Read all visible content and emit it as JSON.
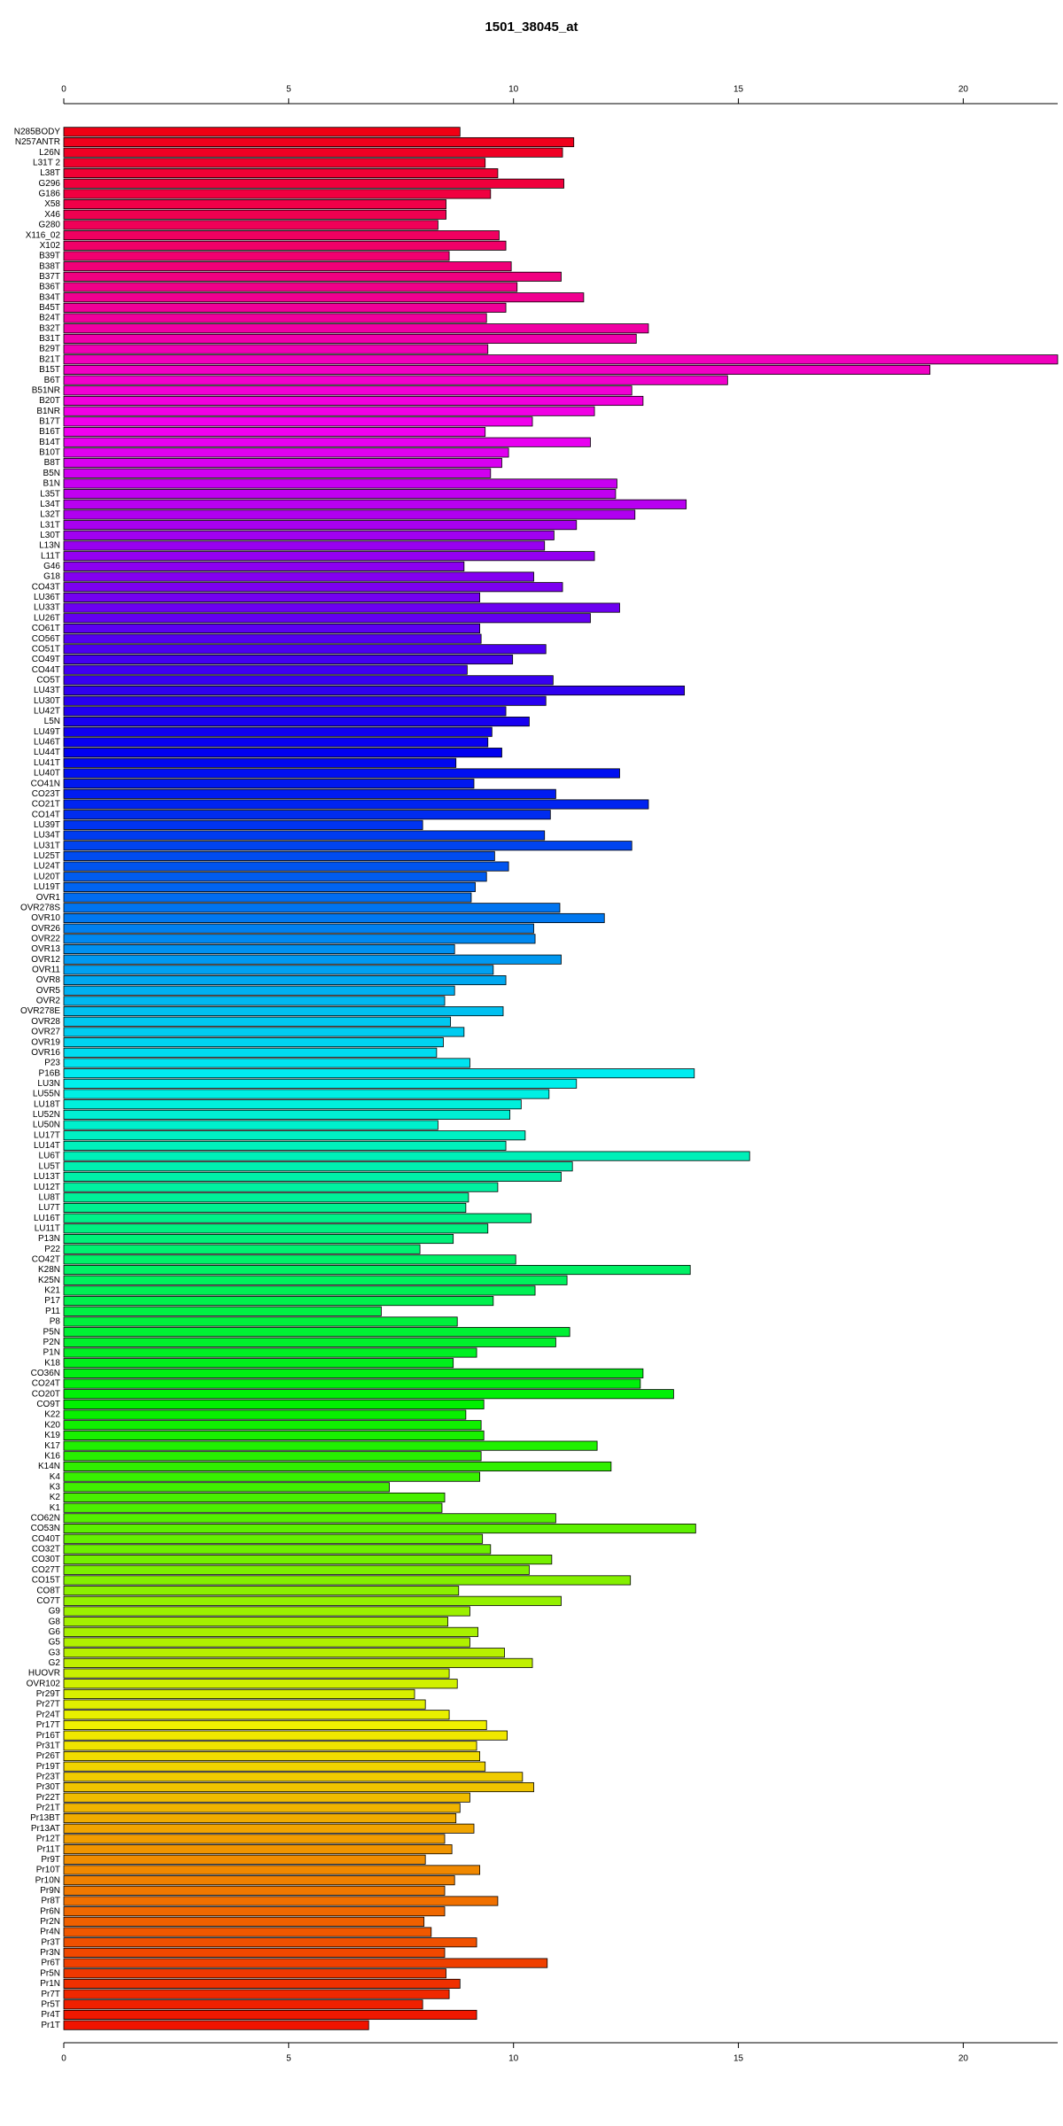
{
  "chart_data": {
    "type": "bar",
    "orientation": "horizontal",
    "title": "1501_38045_at",
    "categories": [
      "N285BODY",
      "N257ANTR",
      "L26N",
      "L31T 2",
      "L38T",
      "G296",
      "G186",
      "X58",
      "X46",
      "G280",
      "X116_02",
      "X102",
      "B39T",
      "B38T",
      "B37T",
      "B36T",
      "B34T",
      "B45T",
      "B24T",
      "B32T",
      "B31T",
      "B29T",
      "B21T",
      "B15T",
      "B6T",
      "B51NR",
      "B20T",
      "B1NR",
      "B17T",
      "B16T",
      "B14T",
      "B10T",
      "B8T",
      "B5N",
      "B1N",
      "L35T",
      "L34T",
      "L32T",
      "L31T",
      "L30T",
      "L13N",
      "L11T",
      "G46",
      "G18",
      "CO43T",
      "LU36T",
      "LU33T",
      "LU26T",
      "CO61T",
      "CO56T",
      "CO51T",
      "CO49T",
      "CO44T",
      "CO5T",
      "LU43T",
      "LU30T",
      "LU42T",
      "L5N",
      "LU49T",
      "LU46T",
      "LU44T",
      "LU41T",
      "LU40T",
      "CO41N",
      "CO23T",
      "CO21T",
      "CO14T",
      "LU39T",
      "LU34T",
      "LU31T",
      "LU25T",
      "LU24T",
      "LU20T",
      "LU19T",
      "OVR1",
      "OVR278S",
      "OVR10",
      "OVR26",
      "OVR22",
      "OVR13",
      "OVR12",
      "OVR11",
      "OVR8",
      "OVR5",
      "OVR2",
      "OVR278E",
      "OVR28",
      "OVR27",
      "OVR19",
      "OVR16",
      "P23",
      "P16B",
      "LU3N",
      "LU55N",
      "LU18T",
      "LU52N",
      "LU50N",
      "LU17T",
      "LU14T",
      "LU6T",
      "LU5T",
      "LU13T",
      "LU12T",
      "LU8T",
      "LU7T",
      "LU16T",
      "LU11T",
      "P13N",
      "P22",
      "CO42T",
      "K28N",
      "K25N",
      "K21",
      "P17",
      "P11",
      "P8",
      "P5N",
      "P2N",
      "P1N",
      "K18",
      "CO36N",
      "CO24T",
      "CO20T",
      "CO9T",
      "K22",
      "K20",
      "K19",
      "K17",
      "K16",
      "K14N",
      "K4",
      "K3",
      "K2",
      "K1",
      "CO62N",
      "CO53N",
      "CO40T",
      "CO32T",
      "CO30T",
      "CO27T",
      "CO15T",
      "CO8T",
      "CO7T",
      "G9",
      "G8",
      "G6",
      "G5",
      "G3",
      "G2",
      "HUOVR",
      "OVR102",
      "Pr29T",
      "Pr27T",
      "Pr24T",
      "Pr17T",
      "Pr16T",
      "Pr31T",
      "Pr26T",
      "Pr19T",
      "Pr23T",
      "Pr30T",
      "Pr22T",
      "Pr21T",
      "Pr13BT",
      "Pr13AT",
      "Pr12T",
      "Pr11T",
      "Pr9T",
      "Pr10T",
      "Pr10N",
      "Pr9N",
      "Pr8T",
      "Pr6N",
      "Pr2N",
      "Pr4N",
      "Pr3T",
      "Pr3N",
      "Pr6T",
      "Pr5N",
      "Pr1N",
      "Pr7T",
      "Pr5T",
      "Pr4T",
      "Pr1T"
    ],
    "values": [
      8.81,
      11.34,
      11.09,
      9.37,
      9.65,
      11.12,
      9.49,
      8.5,
      8.5,
      8.32,
      9.68,
      9.83,
      8.57,
      9.95,
      11.06,
      10.08,
      11.56,
      9.83,
      9.4,
      13.0,
      12.73,
      9.43,
      22.1,
      19.26,
      14.76,
      12.63,
      12.88,
      11.8,
      10.42,
      9.37,
      11.71,
      9.89,
      9.74,
      9.49,
      12.3,
      12.27,
      13.84,
      12.7,
      11.4,
      10.9,
      10.69,
      11.8,
      8.9,
      10.45,
      11.09,
      9.25,
      12.36,
      11.71,
      9.25,
      9.28,
      10.72,
      9.98,
      8.97,
      10.88,
      13.8,
      10.72,
      9.83,
      10.35,
      9.52,
      9.43,
      9.74,
      8.72,
      12.36,
      9.12,
      10.94,
      13.0,
      10.82,
      7.98,
      10.69,
      12.63,
      9.58,
      9.89,
      9.4,
      9.15,
      9.06,
      11.03,
      12.02,
      10.45,
      10.48,
      8.69,
      11.06,
      9.55,
      9.83,
      8.69,
      8.47,
      9.77,
      8.6,
      8.9,
      8.44,
      8.29,
      9.03,
      14.02,
      11.4,
      10.79,
      10.17,
      9.92,
      8.32,
      10.26,
      9.83,
      15.25,
      11.31,
      11.06,
      9.65,
      9.0,
      8.94,
      10.39,
      9.43,
      8.66,
      7.92,
      10.05,
      13.93,
      11.19,
      10.48,
      9.55,
      7.06,
      8.75,
      11.25,
      10.94,
      9.18,
      8.66,
      12.88,
      12.82,
      13.56,
      9.34,
      8.94,
      9.28,
      9.34,
      11.86,
      9.28,
      12.17,
      9.25,
      7.24,
      8.47,
      8.41,
      10.94,
      14.05,
      9.31,
      9.49,
      10.85,
      10.35,
      12.6,
      8.78,
      11.06,
      9.03,
      8.54,
      9.21,
      9.03,
      9.8,
      10.42,
      8.57,
      8.75,
      7.8,
      8.04,
      8.57,
      9.4,
      9.86,
      9.18,
      9.25,
      9.37,
      10.2,
      10.45,
      9.03,
      8.81,
      8.72,
      9.12,
      8.47,
      8.63,
      8.04,
      9.25,
      8.69,
      8.47,
      9.65,
      8.47,
      8.01,
      8.17,
      9.18,
      8.47,
      10.75,
      8.5,
      8.81,
      8.57,
      7.98,
      9.18,
      6.78
    ],
    "colors": [
      "hsl(355,100%,47%)",
      "hsl(353,100%,47%)",
      "hsl(351,100%,47%)",
      "hsl(349,100%,47%)",
      "hsl(347,100%,47%)",
      "hsl(345,100%,47%)",
      "hsl(344,100%,47%)",
      "hsl(342,100%,47%)",
      "hsl(340,100%,47%)",
      "hsl(338,100%,47%)",
      "hsl(336,100%,47%)",
      "hsl(334,100%,47%)",
      "hsl(332,100%,47%)",
      "hsl(330,100%,47%)",
      "hsl(328,100%,47%)",
      "hsl(326,100%,47%)",
      "hsl(324,100%,47%)",
      "hsl(322,100%,47%)",
      "hsl(321,100%,47%)",
      "hsl(319,100%,47%)",
      "hsl(317,100%,47%)",
      "hsl(315,100%,47%)",
      "hsl(313,100%,47%)",
      "hsl(311,100%,47%)",
      "hsl(309,100%,47%)",
      "hsl(307,100%,47%)",
      "hsl(305,100%,47%)",
      "hsl(303,100%,47%)",
      "hsl(301,100%,47%)",
      "hsl(300,100%,47%)",
      "hsl(298,100%,47%)",
      "hsl(296,100%,47%)",
      "hsl(294,100%,47%)",
      "hsl(292,100%,47%)",
      "hsl(290,100%,47%)",
      "hsl(288,100%,47%)",
      "hsl(286,100%,47%)",
      "hsl(284,100%,47%)",
      "hsl(282,100%,47%)",
      "hsl(280,100%,47%)",
      "hsl(278,100%,47%)",
      "hsl(277,100%,47%)",
      "hsl(275,100%,47%)",
      "hsl(273,100%,47%)",
      "hsl(271,100%,47%)",
      "hsl(269,100%,47%)",
      "hsl(267,100%,47%)",
      "hsl(265,100%,47%)",
      "hsl(263,100%,47%)",
      "hsl(261,100%,47%)",
      "hsl(259,100%,47%)",
      "hsl(257,100%,47%)",
      "hsl(256,100%,47%)",
      "hsl(254,100%,47%)",
      "hsl(252,100%,47%)",
      "hsl(250,100%,47%)",
      "hsl(248,100%,47%)",
      "hsl(246,100%,47%)",
      "hsl(244,100%,47%)",
      "hsl(242,100%,47%)",
      "hsl(240,100%,47%)",
      "hsl(238,100%,47%)",
      "hsl(236,100%,47%)",
      "hsl(234,100%,47%)",
      "hsl(233,100%,47%)",
      "hsl(231,100%,47%)",
      "hsl(229,100%,47%)",
      "hsl(227,100%,47%)",
      "hsl(225,100%,47%)",
      "hsl(223,100%,47%)",
      "hsl(221,100%,47%)",
      "hsl(219,100%,47%)",
      "hsl(217,100%,47%)",
      "hsl(215,100%,47%)",
      "hsl(213,100%,47%)",
      "hsl(211,100%,47%)",
      "hsl(210,100%,47%)",
      "hsl(208,100%,47%)",
      "hsl(206,100%,47%)",
      "hsl(204,100%,47%)",
      "hsl(202,100%,47%)",
      "hsl(200,100%,47%)",
      "hsl(198,100%,47%)",
      "hsl(196,100%,47%)",
      "hsl(194,100%,47%)",
      "hsl(192,100%,47%)",
      "hsl(190,100%,47%)",
      "hsl(189,100%,47%)",
      "hsl(187,100%,47%)",
      "hsl(185,100%,47%)",
      "hsl(183,100%,47%)",
      "hsl(181,100%,47%)",
      "hsl(179,100%,47%)",
      "hsl(177,100%,47%)",
      "hsl(175,100%,47%)",
      "hsl(173,100%,47%)",
      "hsl(171,100%,47%)",
      "hsl(169,100%,47%)",
      "hsl(167,100%,47%)",
      "hsl(166,100%,47%)",
      "hsl(164,100%,47%)",
      "hsl(162,100%,47%)",
      "hsl(160,100%,47%)",
      "hsl(158,100%,47%)",
      "hsl(156,100%,47%)",
      "hsl(154,100%,47%)",
      "hsl(152,100%,47%)",
      "hsl(150,100%,47%)",
      "hsl(148,100%,47%)",
      "hsl(146,100%,47%)",
      "hsl(145,100%,47%)",
      "hsl(143,100%,47%)",
      "hsl(141,100%,47%)",
      "hsl(139,100%,47%)",
      "hsl(137,100%,47%)",
      "hsl(135,100%,47%)",
      "hsl(133,100%,47%)",
      "hsl(131,100%,47%)",
      "hsl(129,100%,47%)",
      "hsl(127,100%,47%)",
      "hsl(125,100%,47%)",
      "hsl(123,100%,47%)",
      "hsl(122,100%,47%)",
      "hsl(120,100%,47%)",
      "hsl(118,100%,47%)",
      "hsl(116,100%,47%)",
      "hsl(114,100%,47%)",
      "hsl(112,100%,47%)",
      "hsl(110,100%,47%)",
      "hsl(108,100%,47%)",
      "hsl(106,100%,47%)",
      "hsl(104,100%,47%)",
      "hsl(102,100%,47%)",
      "hsl(101,100%,47%)",
      "hsl(99,100%,47%)",
      "hsl(97,100%,47%)",
      "hsl(95,100%,47%)",
      "hsl(93,100%,47%)",
      "hsl(91,100%,47%)",
      "hsl(89,100%,47%)",
      "hsl(87,100%,47%)",
      "hsl(85,100%,47%)",
      "hsl(83,100%,47%)",
      "hsl(81,100%,47%)",
      "hsl(79,100%,47%)",
      "hsl(78,100%,47%)",
      "hsl(76,100%,47%)",
      "hsl(74,100%,47%)",
      "hsl(72,100%,47%)",
      "hsl(70,100%,47%)",
      "hsl(68,100%,47%)",
      "hsl(66,100%,47%)",
      "hsl(64,100%,47%)",
      "hsl(62,100%,47%)",
      "hsl(60,100%,47%)",
      "hsl(58,100%,47%)",
      "hsl(57,100%,47%)",
      "hsl(55,100%,47%)",
      "hsl(53,100%,47%)",
      "hsl(51,100%,47%)",
      "hsl(49,100%,47%)",
      "hsl(47,100%,47%)",
      "hsl(45,100%,47%)",
      "hsl(43,100%,47%)",
      "hsl(41,100%,47%)",
      "hsl(39,100%,47%)",
      "hsl(37,100%,47%)",
      "hsl(35,100%,47%)",
      "hsl(34,100%,47%)",
      "hsl(32,100%,47%)",
      "hsl(30,100%,47%)",
      "hsl(28,100%,47%)",
      "hsl(26,100%,47%)",
      "hsl(24,100%,47%)",
      "hsl(22,100%,47%)",
      "hsl(20,100%,47%)",
      "hsl(18,100%,47%)",
      "hsl(16,100%,47%)",
      "hsl(14,100%,47%)",
      "hsl(12,100%,47%)",
      "hsl(10,100%,47%)",
      "hsl(8,100%,47%)",
      "hsl(6,100%,47%)",
      "hsl(5,100%,47%)"
    ],
    "xlim": [
      0,
      22.1
    ],
    "xticks": [
      0,
      5,
      10,
      15,
      20
    ]
  }
}
